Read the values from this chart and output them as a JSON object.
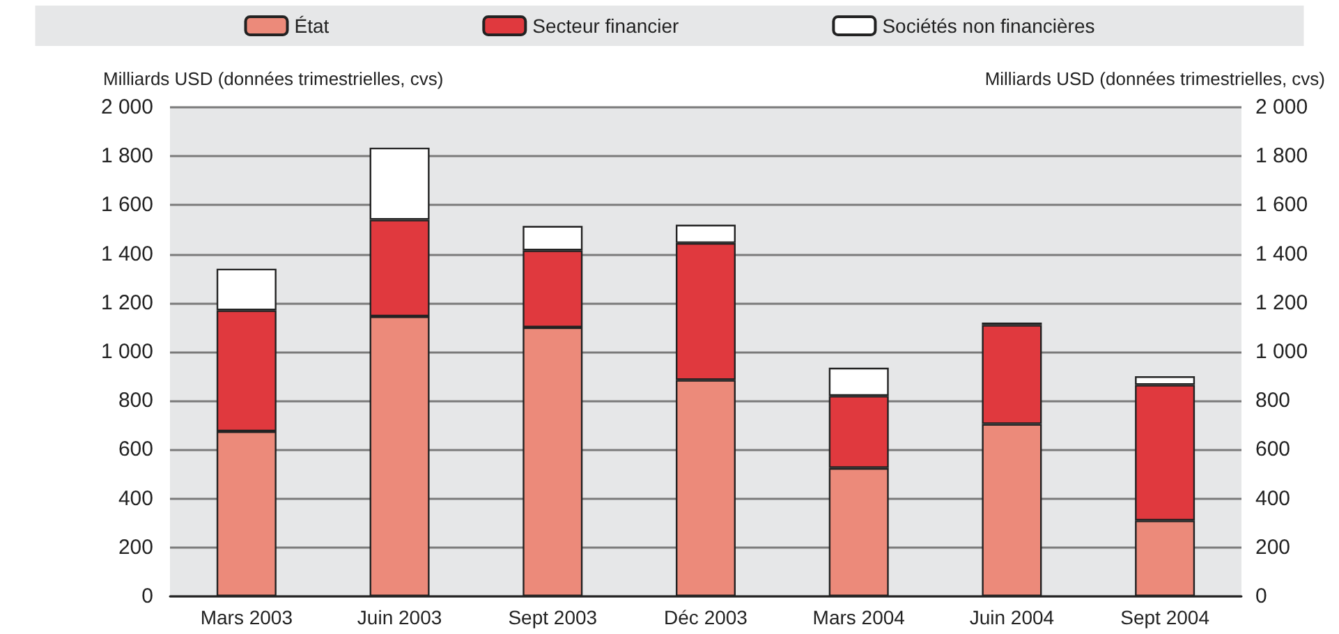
{
  "chart_data": {
    "type": "bar",
    "stacked": true,
    "ylabel": "Milliards USD (données trimestrielles, cvs)",
    "y2label": "Milliards USD (données trimestrielles, cvs)",
    "categories": [
      "Mars 2003",
      "Juin 2003",
      "Sept 2003",
      "Déc 2003",
      "Mars 2004",
      "Juin 2004",
      "Sept 2004"
    ],
    "series": [
      {
        "name": "État",
        "color": "#ec8a7a",
        "values": [
          675,
          1145,
          1100,
          885,
          525,
          705,
          310
        ]
      },
      {
        "name": "Secteur financier",
        "color": "#e0393e",
        "values": [
          495,
          395,
          315,
          560,
          295,
          405,
          555
        ]
      },
      {
        "name": "Sociétés non financières",
        "color": "#ffffff",
        "values": [
          170,
          295,
          100,
          75,
          115,
          10,
          35
        ]
      }
    ],
    "ylim": [
      0,
      2000
    ],
    "yticks": [
      0,
      200,
      400,
      600,
      800,
      {
        "value": 1000,
        "label": "1 000"
      },
      {
        "value": 1200,
        "label": "1 200"
      },
      {
        "value": 1400,
        "label": "1 400"
      },
      {
        "value": 1600,
        "label": "1 600"
      },
      {
        "value": 1800,
        "label": "1 800"
      },
      {
        "value": 2000,
        "label": "2 000"
      }
    ],
    "y2lim": [
      0,
      2000
    ],
    "y2ticks": [
      0,
      200,
      400,
      600,
      800,
      {
        "value": 1000,
        "label": "1 000"
      },
      {
        "value": 1200,
        "label": "1 200"
      },
      {
        "value": 1400,
        "label": "1 400"
      },
      {
        "value": 1600,
        "label": "1 600"
      },
      {
        "value": 1800,
        "label": "1 800"
      },
      {
        "value": 2000,
        "label": "2 000"
      }
    ],
    "grid": "y",
    "legend": "top"
  }
}
